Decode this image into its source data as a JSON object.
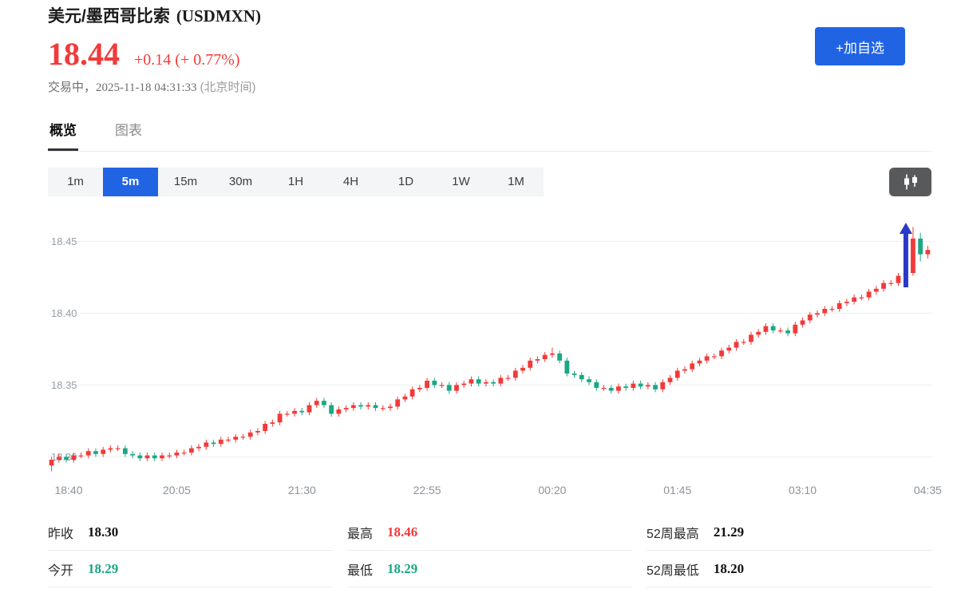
{
  "page": {
    "title_cn": "美元/墨西哥比索",
    "title_symbol": "(USDMXN)"
  },
  "header": {
    "price": "18.44",
    "change": "+0.14 (+ 0.77%)",
    "status": "交易中，",
    "time": "2025-11-18 04:31:33",
    "tz": "(北京时间)",
    "watchlist_label": "+加自选"
  },
  "tabs": [
    {
      "label": "概览",
      "active": true
    },
    {
      "label": "图表",
      "active": false
    }
  ],
  "toolbar": {
    "timeframes": [
      "1m",
      "5m",
      "15m",
      "30m",
      "1H",
      "4H",
      "1D",
      "1W",
      "1M"
    ],
    "active_timeframe": "5m",
    "chart_type_icon": "candlestick-icon"
  },
  "colors": {
    "accent": "#2064e4",
    "up": "#f23a3a",
    "down": "#1ba784",
    "arrow": "#2b3ac6",
    "grid": "#ebedef",
    "axis_text": "#9aa0a6"
  },
  "chart_data": {
    "type": "candlestick",
    "pair": "USDMXN",
    "interval": "5m",
    "y_ticks": [
      18.45,
      18.4,
      18.35,
      18.3
    ],
    "y_range": [
      18.288,
      18.468
    ],
    "x_labels": [
      "18:40",
      "20:05",
      "21:30",
      "22:55",
      "00:20",
      "01:45",
      "03:10",
      "04:35"
    ],
    "x_label_indices": [
      0,
      17,
      34,
      51,
      68,
      85,
      102,
      119
    ],
    "annotations": [
      {
        "shape": "up-arrow",
        "candle_index": 117,
        "price_tip": 18.463,
        "price_tail": 18.418
      }
    ],
    "candles": [
      [
        18.294,
        18.3,
        18.29,
        18.298
      ],
      [
        18.298,
        18.302,
        18.296,
        18.3
      ],
      [
        18.3,
        18.302,
        18.296,
        18.298
      ],
      [
        18.298,
        18.303,
        18.296,
        18.301
      ],
      [
        18.301,
        18.303,
        18.299,
        18.301
      ],
      [
        18.301,
        18.306,
        18.299,
        18.304
      ],
      [
        18.304,
        18.306,
        18.3,
        18.302
      ],
      [
        18.302,
        18.307,
        18.3,
        18.305
      ],
      [
        18.305,
        18.308,
        18.303,
        18.306
      ],
      [
        18.306,
        18.308,
        18.304,
        18.306
      ],
      [
        18.306,
        18.308,
        18.3,
        18.302
      ],
      [
        18.302,
        18.304,
        18.299,
        18.301
      ],
      [
        18.301,
        18.303,
        18.297,
        18.299
      ],
      [
        18.299,
        18.303,
        18.297,
        18.301
      ],
      [
        18.301,
        18.303,
        18.297,
        18.299
      ],
      [
        18.299,
        18.303,
        18.297,
        18.301
      ],
      [
        18.301,
        18.303,
        18.299,
        18.301
      ],
      [
        18.301,
        18.305,
        18.299,
        18.303
      ],
      [
        18.303,
        18.305,
        18.301,
        18.303
      ],
      [
        18.303,
        18.308,
        18.301,
        18.306
      ],
      [
        18.306,
        18.309,
        18.304,
        18.307
      ],
      [
        18.307,
        18.312,
        18.305,
        18.31
      ],
      [
        18.31,
        18.312,
        18.307,
        18.309
      ],
      [
        18.309,
        18.314,
        18.307,
        18.312
      ],
      [
        18.312,
        18.314,
        18.31,
        18.312
      ],
      [
        18.312,
        18.316,
        18.31,
        18.314
      ],
      [
        18.314,
        18.316,
        18.312,
        18.314
      ],
      [
        18.314,
        18.319,
        18.312,
        18.317
      ],
      [
        18.317,
        18.32,
        18.315,
        18.318
      ],
      [
        18.318,
        18.325,
        18.316,
        18.323
      ],
      [
        18.323,
        18.326,
        18.321,
        18.324
      ],
      [
        18.324,
        18.332,
        18.322,
        18.33
      ],
      [
        18.33,
        18.332,
        18.328,
        18.33
      ],
      [
        18.33,
        18.334,
        18.328,
        18.332
      ],
      [
        18.332,
        18.334,
        18.329,
        18.331
      ],
      [
        18.331,
        18.338,
        18.329,
        18.336
      ],
      [
        18.336,
        18.341,
        18.334,
        18.339
      ],
      [
        18.339,
        18.341,
        18.334,
        18.336
      ],
      [
        18.336,
        18.338,
        18.328,
        18.33
      ],
      [
        18.33,
        18.335,
        18.328,
        18.333
      ],
      [
        18.333,
        18.336,
        18.331,
        18.334
      ],
      [
        18.334,
        18.338,
        18.332,
        18.336
      ],
      [
        18.336,
        18.338,
        18.333,
        18.335
      ],
      [
        18.335,
        18.338,
        18.333,
        18.336
      ],
      [
        18.336,
        18.338,
        18.332,
        18.334
      ],
      [
        18.334,
        18.336,
        18.332,
        18.334
      ],
      [
        18.334,
        18.337,
        18.332,
        18.335
      ],
      [
        18.335,
        18.342,
        18.333,
        18.34
      ],
      [
        18.34,
        18.344,
        18.338,
        18.342
      ],
      [
        18.342,
        18.349,
        18.34,
        18.347
      ],
      [
        18.347,
        18.35,
        18.345,
        18.348
      ],
      [
        18.348,
        18.355,
        18.346,
        18.353
      ],
      [
        18.353,
        18.355,
        18.348,
        18.35
      ],
      [
        18.35,
        18.352,
        18.348,
        18.35
      ],
      [
        18.35,
        18.352,
        18.344,
        18.346
      ],
      [
        18.346,
        18.352,
        18.344,
        18.35
      ],
      [
        18.35,
        18.353,
        18.348,
        18.351
      ],
      [
        18.351,
        18.356,
        18.349,
        18.354
      ],
      [
        18.354,
        18.356,
        18.349,
        18.351
      ],
      [
        18.351,
        18.354,
        18.349,
        18.352
      ],
      [
        18.352,
        18.354,
        18.349,
        18.351
      ],
      [
        18.351,
        18.357,
        18.349,
        18.355
      ],
      [
        18.355,
        18.357,
        18.353,
        18.355
      ],
      [
        18.355,
        18.362,
        18.353,
        18.36
      ],
      [
        18.36,
        18.364,
        18.358,
        18.362
      ],
      [
        18.362,
        18.369,
        18.36,
        18.367
      ],
      [
        18.367,
        18.37,
        18.365,
        18.368
      ],
      [
        18.368,
        18.373,
        18.366,
        18.371
      ],
      [
        18.371,
        18.376,
        18.369,
        18.372
      ],
      [
        18.372,
        18.374,
        18.365,
        18.367
      ],
      [
        18.367,
        18.369,
        18.356,
        18.358
      ],
      [
        18.358,
        18.36,
        18.355,
        18.357
      ],
      [
        18.357,
        18.359,
        18.352,
        18.354
      ],
      [
        18.354,
        18.356,
        18.35,
        18.352
      ],
      [
        18.352,
        18.354,
        18.346,
        18.348
      ],
      [
        18.348,
        18.35,
        18.346,
        18.348
      ],
      [
        18.348,
        18.35,
        18.344,
        18.346
      ],
      [
        18.346,
        18.351,
        18.344,
        18.349
      ],
      [
        18.349,
        18.351,
        18.346,
        18.348
      ],
      [
        18.348,
        18.353,
        18.346,
        18.351
      ],
      [
        18.351,
        18.353,
        18.347,
        18.349
      ],
      [
        18.349,
        18.352,
        18.347,
        18.35
      ],
      [
        18.35,
        18.352,
        18.345,
        18.347
      ],
      [
        18.347,
        18.354,
        18.345,
        18.352
      ],
      [
        18.352,
        18.357,
        18.35,
        18.355
      ],
      [
        18.355,
        18.362,
        18.353,
        18.36
      ],
      [
        18.36,
        18.363,
        18.358,
        18.361
      ],
      [
        18.361,
        18.367,
        18.359,
        18.365
      ],
      [
        18.365,
        18.369,
        18.363,
        18.367
      ],
      [
        18.367,
        18.372,
        18.365,
        18.37
      ],
      [
        18.37,
        18.372,
        18.368,
        18.37
      ],
      [
        18.37,
        18.376,
        18.368,
        18.374
      ],
      [
        18.374,
        18.378,
        18.372,
        18.376
      ],
      [
        18.376,
        18.382,
        18.374,
        18.38
      ],
      [
        18.38,
        18.382,
        18.378,
        18.38
      ],
      [
        18.38,
        18.387,
        18.378,
        18.385
      ],
      [
        18.385,
        18.389,
        18.383,
        18.387
      ],
      [
        18.387,
        18.393,
        18.385,
        18.391
      ],
      [
        18.391,
        18.393,
        18.386,
        18.388
      ],
      [
        18.388,
        18.39,
        18.386,
        18.388
      ],
      [
        18.388,
        18.39,
        18.384,
        18.386
      ],
      [
        18.386,
        18.394,
        18.384,
        18.392
      ],
      [
        18.392,
        18.397,
        18.39,
        18.395
      ],
      [
        18.395,
        18.401,
        18.393,
        18.399
      ],
      [
        18.399,
        18.402,
        18.397,
        18.4
      ],
      [
        18.4,
        18.405,
        18.398,
        18.403
      ],
      [
        18.403,
        18.405,
        18.401,
        18.403
      ],
      [
        18.403,
        18.409,
        18.401,
        18.407
      ],
      [
        18.407,
        18.41,
        18.405,
        18.408
      ],
      [
        18.408,
        18.413,
        18.406,
        18.411
      ],
      [
        18.411,
        18.413,
        18.409,
        18.411
      ],
      [
        18.411,
        18.417,
        18.409,
        18.415
      ],
      [
        18.415,
        18.419,
        18.413,
        18.417
      ],
      [
        18.417,
        18.423,
        18.415,
        18.421
      ],
      [
        18.421,
        18.423,
        18.419,
        18.421
      ],
      [
        18.421,
        18.428,
        18.419,
        18.426
      ],
      [
        18.426,
        18.43,
        18.424,
        18.428
      ],
      [
        18.428,
        18.46,
        18.426,
        18.452
      ],
      [
        18.452,
        18.456,
        18.436,
        18.441
      ],
      [
        18.441,
        18.447,
        18.438,
        18.444
      ]
    ]
  },
  "stats": [
    {
      "label": "昨收",
      "value": "18.30",
      "color": "neutral"
    },
    {
      "label": "今开",
      "value": "18.29",
      "color": "down"
    },
    {
      "label": "最高",
      "value": "18.46",
      "color": "up"
    },
    {
      "label": "最低",
      "value": "18.29",
      "color": "down"
    },
    {
      "label": "52周最高",
      "value": "21.29",
      "color": "neutral"
    },
    {
      "label": "52周最低",
      "value": "18.20",
      "color": "neutral"
    }
  ]
}
